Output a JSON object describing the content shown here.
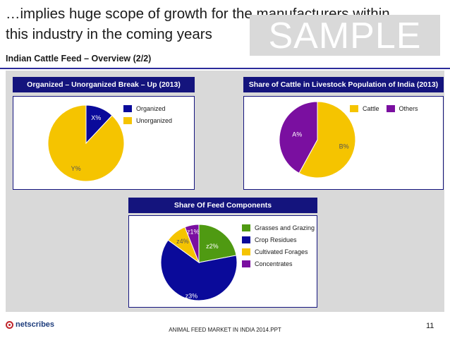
{
  "header": {
    "title": "…implies huge scope of growth for the manufacturers within this industry in the coming years",
    "watermark": "SAMPLE",
    "subtitle": "Indian Cattle Feed – Overview (2/2)"
  },
  "colors": {
    "navy": "#14147d",
    "blue": "#0a0a9a",
    "yellow": "#f5c400",
    "green": "#4f9a12",
    "purple": "#7a0fa0",
    "panel": "#d9d9d9"
  },
  "chart_data": [
    {
      "id": "org",
      "type": "pie",
      "title": "Organized – Unorganized Break – Up (2013)",
      "categories": [
        "Organized",
        "Unorganized"
      ],
      "values": [
        12,
        88
      ],
      "data_labels": [
        "X%",
        "Y%"
      ],
      "colors": [
        "#0a0a9a",
        "#f5c400"
      ],
      "legend": "right"
    },
    {
      "id": "cattle",
      "type": "pie",
      "title": "Share of Cattle in Livestock Population of India (2013)",
      "categories": [
        "Cattle",
        "Others"
      ],
      "values": [
        58,
        42
      ],
      "data_labels": [
        "B%",
        "A%"
      ],
      "colors": [
        "#f5c400",
        "#7a0fa0"
      ],
      "legend": "top-right"
    },
    {
      "id": "feed",
      "type": "pie",
      "title": "Share Of Feed Components",
      "categories": [
        "Grasses and Grazing",
        "Crop Residues",
        "Cultivated Forages",
        "Concentrates"
      ],
      "values": [
        22,
        63,
        9,
        6
      ],
      "data_labels": [
        "z2%",
        "z3%",
        "z4%",
        "z1%"
      ],
      "colors": [
        "#4f9a12",
        "#0a0a9a",
        "#f5c400",
        "#7a0fa0"
      ],
      "legend": "right"
    }
  ],
  "footer": {
    "logo": "netscribes",
    "source": "ANIMAL FEED MARKET IN INDIA 2014.PPT",
    "page": "11"
  }
}
